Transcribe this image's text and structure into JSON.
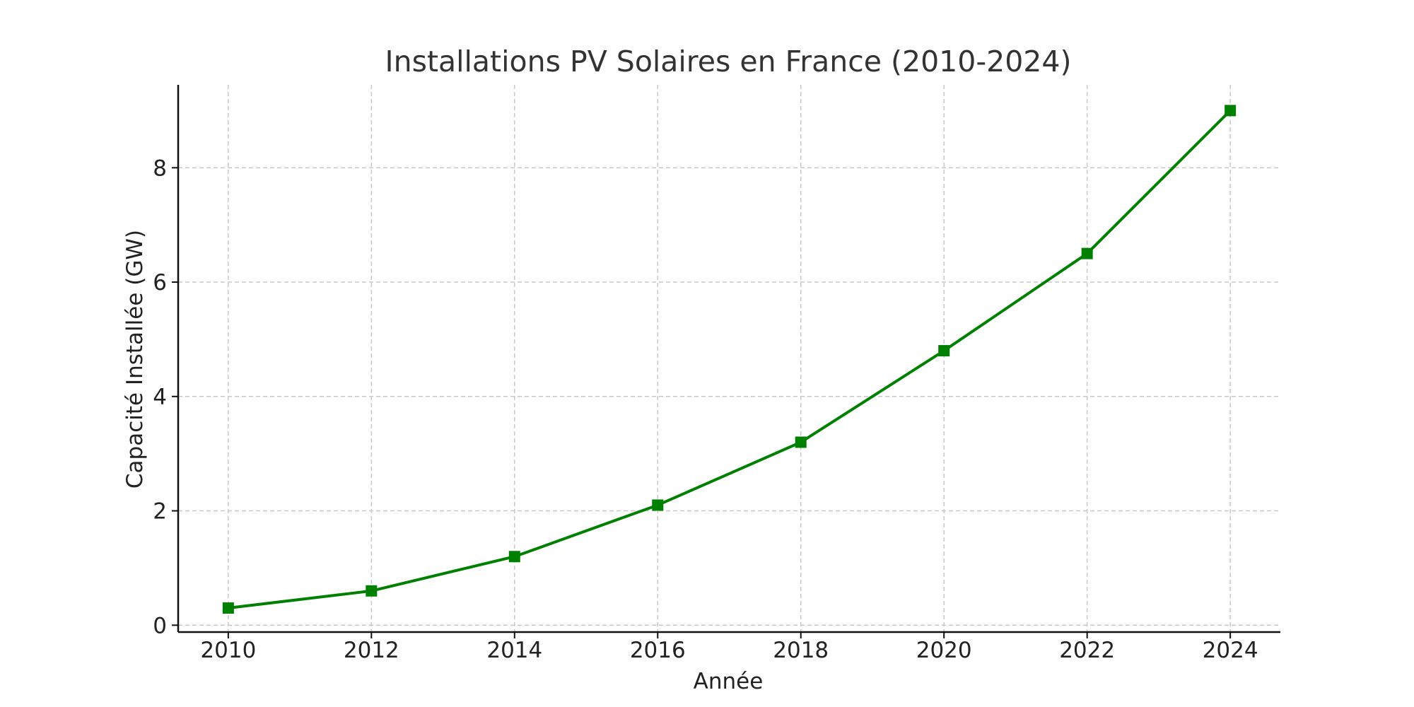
{
  "chart_data": {
    "type": "line",
    "title": "Installations PV Solaires en France (2010-2024)",
    "xlabel": "Année",
    "ylabel": "Capacité Installée (GW)",
    "x": [
      2010,
      2012,
      2014,
      2016,
      2018,
      2020,
      2022,
      2024
    ],
    "series": [
      {
        "name": "",
        "values": [
          0.3,
          0.6,
          1.2,
          2.1,
          3.2,
          4.8,
          6.5,
          9.0
        ],
        "color": "#008000",
        "marker": "square"
      }
    ],
    "xticks": [
      "2010",
      "2012",
      "2014",
      "2016",
      "2018",
      "2020",
      "2022",
      "2024"
    ],
    "yticks": [
      "0",
      "2",
      "4",
      "6",
      "8"
    ],
    "xlim": [
      2009.3,
      2024.7
    ],
    "ylim": [
      -0.12,
      9.45
    ],
    "grid": true,
    "legend": "none"
  }
}
